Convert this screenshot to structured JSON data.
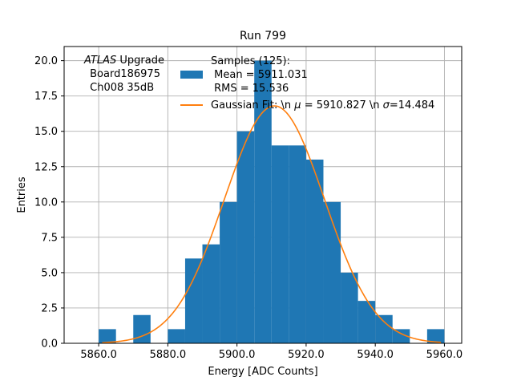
{
  "chart_data": {
    "type": "bar",
    "title": "Run 799",
    "xlabel": "Energy [ADC Counts]",
    "ylabel": "Entries",
    "xlim": [
      5850,
      5965
    ],
    "ylim": [
      0,
      21
    ],
    "grid": true,
    "xticks": [
      5860,
      5880,
      5900,
      5920,
      5940,
      5960
    ],
    "xtick_labels": [
      "5860.0",
      "5880.0",
      "5900.0",
      "5920.0",
      "5940.0",
      "5960.0"
    ],
    "yticks": [
      0,
      2.5,
      5,
      7.5,
      10,
      12.5,
      15,
      17.5,
      20
    ],
    "ytick_labels": [
      "0.0",
      "2.5",
      "5.0",
      "7.5",
      "10.0",
      "12.5",
      "15.0",
      "17.5",
      "20.0"
    ],
    "bar_color": "#1f77b4",
    "fit_color": "#ff7f0e",
    "bin_width": 5,
    "bins": [
      {
        "left": 5860,
        "count": 1
      },
      {
        "left": 5870,
        "count": 2
      },
      {
        "left": 5880,
        "count": 1
      },
      {
        "left": 5885,
        "count": 6
      },
      {
        "left": 5890,
        "count": 7
      },
      {
        "left": 5895,
        "count": 10
      },
      {
        "left": 5900,
        "count": 15
      },
      {
        "left": 5905,
        "count": 20
      },
      {
        "left": 5910,
        "count": 14
      },
      {
        "left": 5915,
        "count": 14
      },
      {
        "left": 5920,
        "count": 13
      },
      {
        "left": 5925,
        "count": 10
      },
      {
        "left": 5930,
        "count": 5
      },
      {
        "left": 5935,
        "count": 3
      },
      {
        "left": 5940,
        "count": 2
      },
      {
        "left": 5945,
        "count": 1
      },
      {
        "left": 5955,
        "count": 1
      }
    ],
    "fit": {
      "mu": 5910.827,
      "sigma": 14.484,
      "amplitude": 16.8,
      "x_from": 5861,
      "x_to": 5959
    },
    "annotation": {
      "line1_italic": "ATLAS",
      "line1_rest": " Upgrade",
      "line2": " Board186975",
      "line3": " Ch008 35dB"
    },
    "legend": {
      "position": "top-center",
      "histogram_label": [
        "Samples (125):",
        " Mean = 5911.031",
        " RMS = 15.536"
      ],
      "fit_label": {
        "prefix": "Gaussian Fit: \\n ",
        "mu_symbol": "μ",
        "mu_value": " = 5910.827 \\n ",
        "sigma_symbol": "σ",
        "sigma_value": "=14.484"
      }
    }
  }
}
